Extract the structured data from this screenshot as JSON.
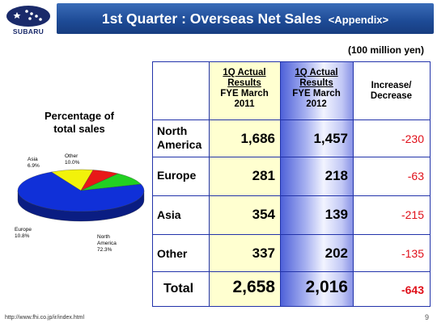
{
  "brand": {
    "logo_text": "SUBARU",
    "color": "#1a2a6a"
  },
  "header": {
    "title": "1st Quarter : Overseas Net Sales",
    "appendix": "<Appendix>",
    "bar_color": "#1d4a95"
  },
  "unit_label": "(100 million yen)",
  "pie": {
    "title_line1": "Percentage of",
    "title_line2": "total sales",
    "labels": {
      "asia": {
        "name": "Asia",
        "pct": "6.9%"
      },
      "other": {
        "name": "Other",
        "pct": "10.0%"
      },
      "europe": {
        "name": "Europe",
        "pct": "10.8%"
      },
      "north_america": {
        "name_line1": "North",
        "name_line2": "America",
        "pct": "72.3%"
      }
    }
  },
  "chart_data": {
    "type": "pie",
    "title": "Percentage of total sales",
    "slices": [
      {
        "name": "North America",
        "value": 72.3,
        "color": "#1030d8"
      },
      {
        "name": "Europe",
        "value": 10.8,
        "color": "#f2f20a"
      },
      {
        "name": "Asia",
        "value": 6.9,
        "color": "#e81818"
      },
      {
        "name": "Other",
        "value": 10.0,
        "color": "#22d022"
      }
    ]
  },
  "table": {
    "headers": {
      "col1": {
        "line1": "1Q Actual",
        "line2": "Results",
        "line3": "FYE March",
        "line4": "2011"
      },
      "col2": {
        "line1": "1Q Actual",
        "line2": "Results",
        "line3": "FYE March",
        "line4": "2012"
      },
      "col3": {
        "line1": "Increase/",
        "line2": "Decrease"
      }
    },
    "rows": [
      {
        "label_line1": "North",
        "label_line2": "America",
        "fy2011": "1,686",
        "fy2012": "1,457",
        "change": "-230"
      },
      {
        "label_line1": "Europe",
        "label_line2": "",
        "fy2011": "281",
        "fy2012": "218",
        "change": "-63"
      },
      {
        "label_line1": "Asia",
        "label_line2": "",
        "fy2011": "354",
        "fy2012": "139",
        "change": "-215"
      },
      {
        "label_line1": "Other",
        "label_line2": "",
        "fy2011": "337",
        "fy2012": "202",
        "change": "-135"
      }
    ],
    "total": {
      "label": "Total",
      "fy2011": "2,658",
      "fy2012": "2,016",
      "change": "-643"
    },
    "colors": {
      "col1_bg": "#ffffd0",
      "col2_bg": "#4c5fd8",
      "negative": "#e0101a",
      "grid": "#2233aa"
    }
  },
  "footer": {
    "url": "http://www.fhi.co.jp/ir/index.html",
    "page": "9"
  }
}
